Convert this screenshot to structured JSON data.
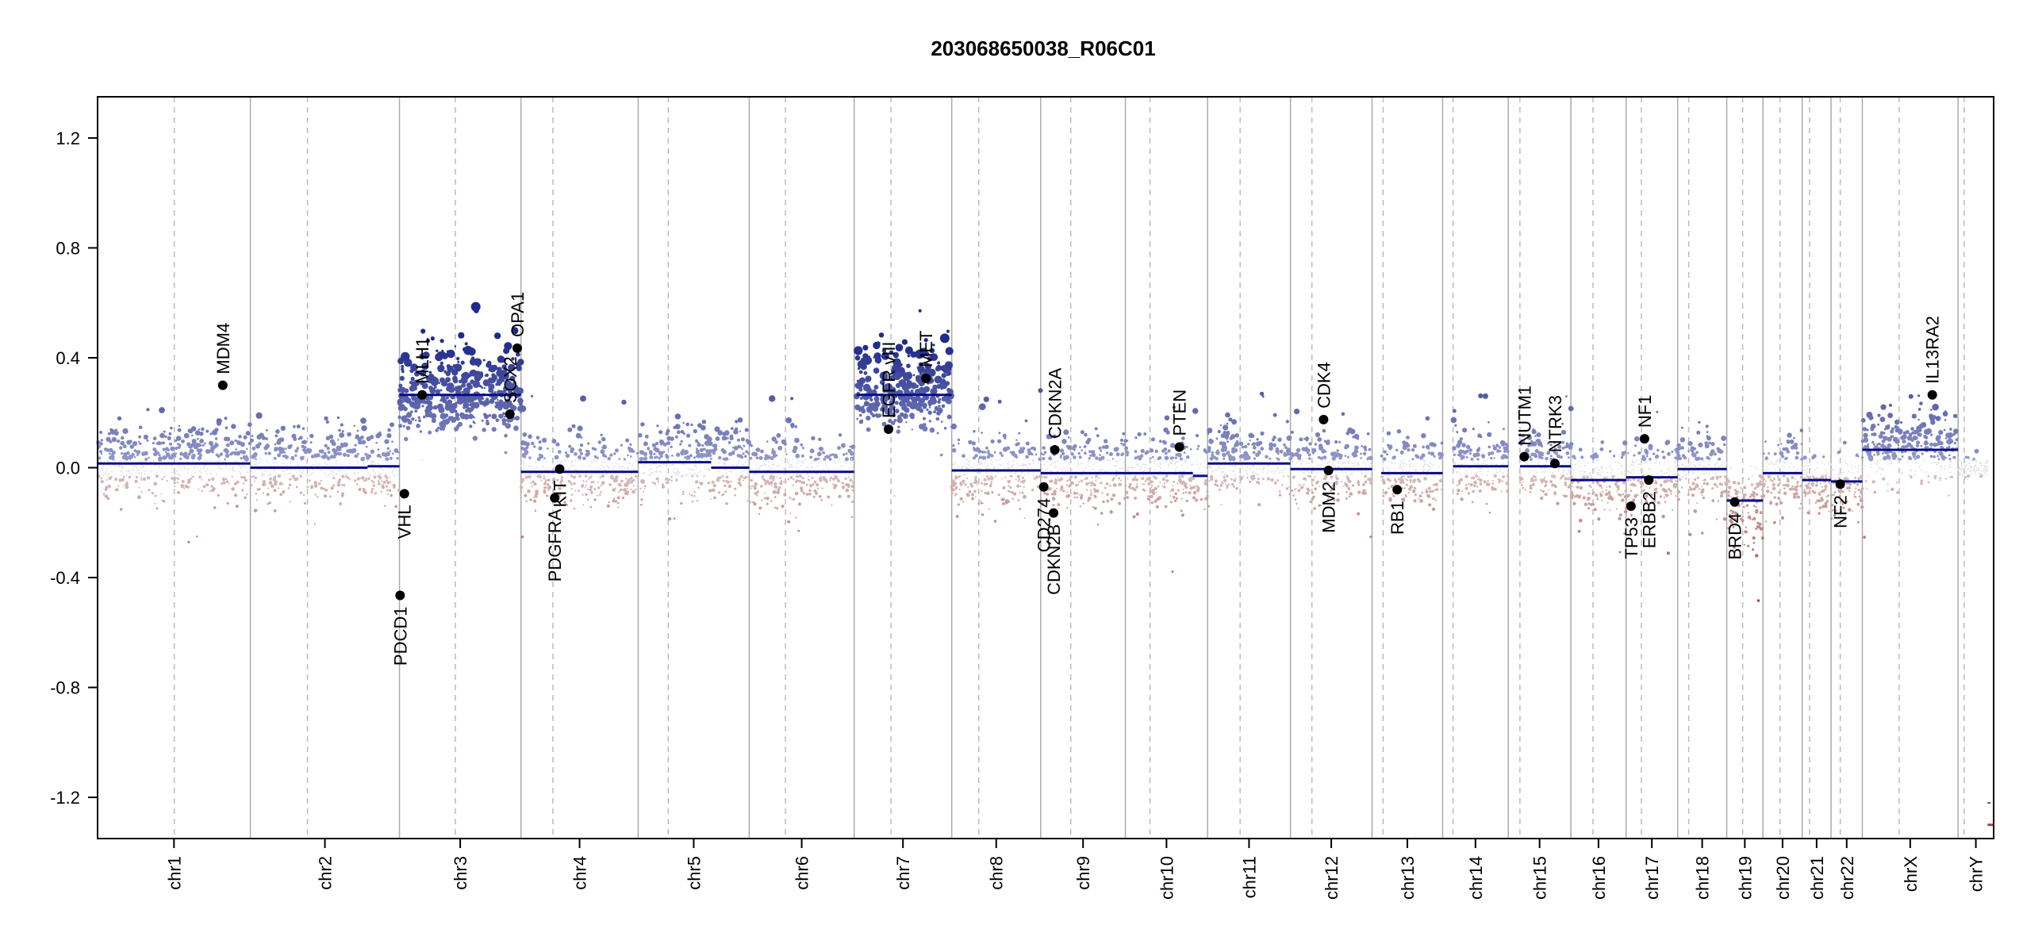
{
  "chart_data": {
    "type": "scatter",
    "title": "203068650038_R06C01",
    "xlabel": "",
    "ylabel": "",
    "ylim": [
      -1.35,
      1.35
    ],
    "yticks": [
      -1.2,
      -0.8,
      -0.4,
      0.0,
      0.4,
      0.8,
      1.2
    ],
    "ytick_labels": [
      "-1.2",
      "-0.8",
      "-0.4",
      "0.0",
      "0.4",
      "0.8",
      "1.2"
    ],
    "grid": false,
    "colors": {
      "gain_dark": "#1f2a8c",
      "gain_light": "#9aa0cc",
      "loss_dark": "#a8453b",
      "loss_light": "#d8c4c2",
      "segment": "#0a0a85",
      "chr_boundary": "#aaaaaa",
      "centromere": "#bbbbbb"
    },
    "chromosomes": [
      {
        "name": "chr1",
        "start": 0,
        "end": 249,
        "centromere": 125
      },
      {
        "name": "chr2",
        "start": 249,
        "end": 492,
        "centromere": 342
      },
      {
        "name": "chr3",
        "start": 492,
        "end": 690,
        "centromere": 583
      },
      {
        "name": "chr4",
        "start": 690,
        "end": 881,
        "centromere": 742
      },
      {
        "name": "chr5",
        "start": 881,
        "end": 1062,
        "centromere": 930
      },
      {
        "name": "chr6",
        "start": 1062,
        "end": 1233,
        "centromere": 1121
      },
      {
        "name": "chr7",
        "start": 1233,
        "end": 1392,
        "centromere": 1293
      },
      {
        "name": "chr8",
        "start": 1392,
        "end": 1537,
        "centromere": 1436
      },
      {
        "name": "chr9",
        "start": 1537,
        "end": 1675,
        "centromere": 1586
      },
      {
        "name": "chr10",
        "start": 1675,
        "end": 1809,
        "centromere": 1715
      },
      {
        "name": "chr11",
        "start": 1809,
        "end": 1944,
        "centromere": 1862
      },
      {
        "name": "chr12",
        "start": 1944,
        "end": 2077,
        "centromere": 1979
      },
      {
        "name": "chr13",
        "start": 2077,
        "end": 2192,
        "centromere": 2095
      },
      {
        "name": "chr14",
        "start": 2192,
        "end": 2299,
        "centromere": 2209
      },
      {
        "name": "chr15",
        "start": 2299,
        "end": 2401,
        "centromere": 2318
      },
      {
        "name": "chr16",
        "start": 2401,
        "end": 2491,
        "centromere": 2437
      },
      {
        "name": "chr17",
        "start": 2491,
        "end": 2575,
        "centromere": 2516
      },
      {
        "name": "chr18",
        "start": 2575,
        "end": 2655,
        "centromere": 2593
      },
      {
        "name": "chr19",
        "start": 2655,
        "end": 2714,
        "centromere": 2681
      },
      {
        "name": "chr20",
        "start": 2714,
        "end": 2778,
        "centromere": 2742
      },
      {
        "name": "chr21",
        "start": 2778,
        "end": 2825,
        "centromere": 2790
      },
      {
        "name": "chr22",
        "start": 2825,
        "end": 2876,
        "centromere": 2840
      },
      {
        "name": "chrX",
        "start": 2876,
        "end": 3032,
        "centromere": 2936
      },
      {
        "name": "chrY",
        "start": 3032,
        "end": 3090,
        "centromere": 3042
      }
    ],
    "segments": [
      {
        "x0": 0,
        "x1": 249,
        "y": 0.015
      },
      {
        "x0": 249,
        "x1": 440,
        "y": 0.0
      },
      {
        "x0": 440,
        "x1": 492,
        "y": 0.005
      },
      {
        "x0": 492,
        "x1": 690,
        "y": 0.265
      },
      {
        "x0": 690,
        "x1": 881,
        "y": -0.015
      },
      {
        "x0": 881,
        "x1": 1000,
        "y": 0.02
      },
      {
        "x0": 1000,
        "x1": 1062,
        "y": 0.0
      },
      {
        "x0": 1062,
        "x1": 1233,
        "y": -0.015
      },
      {
        "x0": 1237,
        "x1": 1392,
        "y": 0.265
      },
      {
        "x0": 1392,
        "x1": 1537,
        "y": -0.01
      },
      {
        "x0": 1537,
        "x1": 1675,
        "y": -0.02
      },
      {
        "x0": 1675,
        "x1": 1785,
        "y": -0.02
      },
      {
        "x0": 1785,
        "x1": 1809,
        "y": -0.03
      },
      {
        "x0": 1809,
        "x1": 1944,
        "y": 0.015
      },
      {
        "x0": 1944,
        "x1": 2077,
        "y": -0.005
      },
      {
        "x0": 2092,
        "x1": 2192,
        "y": -0.02
      },
      {
        "x0": 2209,
        "x1": 2299,
        "y": 0.005
      },
      {
        "x0": 2318,
        "x1": 2401,
        "y": 0.005
      },
      {
        "x0": 2401,
        "x1": 2491,
        "y": -0.045
      },
      {
        "x0": 2491,
        "x1": 2575,
        "y": -0.035
      },
      {
        "x0": 2575,
        "x1": 2655,
        "y": -0.005
      },
      {
        "x0": 2655,
        "x1": 2714,
        "y": -0.12
      },
      {
        "x0": 2714,
        "x1": 2778,
        "y": -0.02
      },
      {
        "x0": 2778,
        "x1": 2825,
        "y": -0.045
      },
      {
        "x0": 2825,
        "x1": 2876,
        "y": -0.05
      },
      {
        "x0": 2876,
        "x1": 3032,
        "y": 0.065
      },
      {
        "x0": 3080,
        "x1": 3090,
        "y": -1.3
      }
    ],
    "regions": [
      {
        "x0": 0,
        "x1": 249,
        "base": 0.015,
        "gain": 0.12,
        "loss": 0.1
      },
      {
        "x0": 249,
        "x1": 492,
        "base": 0.0,
        "gain": 0.12,
        "loss": 0.1
      },
      {
        "x0": 492,
        "x1": 690,
        "base": 0.265,
        "gain": 0.16,
        "loss": 0.12
      },
      {
        "x0": 690,
        "x1": 881,
        "base": -0.015,
        "gain": 0.11,
        "loss": 0.11
      },
      {
        "x0": 881,
        "x1": 1062,
        "base": 0.01,
        "gain": 0.13,
        "loss": 0.11
      },
      {
        "x0": 1062,
        "x1": 1233,
        "base": -0.015,
        "gain": 0.11,
        "loss": 0.11
      },
      {
        "x0": 1237,
        "x1": 1392,
        "base": 0.265,
        "gain": 0.16,
        "loss": 0.12
      },
      {
        "x0": 1392,
        "x1": 1537,
        "base": -0.01,
        "gain": 0.11,
        "loss": 0.11
      },
      {
        "x0": 1537,
        "x1": 1675,
        "base": -0.02,
        "gain": 0.11,
        "loss": 0.11
      },
      {
        "x0": 1675,
        "x1": 1809,
        "base": -0.02,
        "gain": 0.11,
        "loss": 0.11
      },
      {
        "x0": 1809,
        "x1": 1944,
        "base": 0.015,
        "gain": 0.12,
        "loss": 0.1
      },
      {
        "x0": 1944,
        "x1": 2077,
        "base": -0.005,
        "gain": 0.11,
        "loss": 0.11
      },
      {
        "x0": 2092,
        "x1": 2192,
        "base": -0.02,
        "gain": 0.11,
        "loss": 0.11
      },
      {
        "x0": 2209,
        "x1": 2299,
        "base": 0.005,
        "gain": 0.12,
        "loss": 0.1
      },
      {
        "x0": 2318,
        "x1": 2401,
        "base": 0.005,
        "gain": 0.12,
        "loss": 0.1
      },
      {
        "x0": 2401,
        "x1": 2491,
        "base": -0.045,
        "gain": 0.1,
        "loss": 0.12
      },
      {
        "x0": 2491,
        "x1": 2575,
        "base": -0.035,
        "gain": 0.11,
        "loss": 0.12
      },
      {
        "x0": 2575,
        "x1": 2655,
        "base": -0.005,
        "gain": 0.11,
        "loss": 0.11
      },
      {
        "x0": 2655,
        "x1": 2714,
        "base": -0.12,
        "gain": 0.1,
        "loss": 0.14
      },
      {
        "x0": 2714,
        "x1": 2778,
        "base": -0.02,
        "gain": 0.11,
        "loss": 0.11
      },
      {
        "x0": 2778,
        "x1": 2825,
        "base": -0.045,
        "gain": 0.1,
        "loss": 0.12
      },
      {
        "x0": 2825,
        "x1": 2876,
        "base": -0.05,
        "gain": 0.1,
        "loss": 0.12
      },
      {
        "x0": 2876,
        "x1": 3032,
        "base": 0.065,
        "gain": 0.13,
        "loss": 0.12
      },
      {
        "x0": 3032,
        "x1": 3080,
        "base": 0.0,
        "gain": 0.03,
        "loss": 0.03
      }
    ],
    "genes": [
      {
        "name": "MDM4",
        "x": 204,
        "y": 0.3,
        "label_side": "above"
      },
      {
        "name": "PDCD1",
        "x": 493,
        "y": -0.465,
        "label_side": "below"
      },
      {
        "name": "VHL",
        "x": 500,
        "y": -0.095,
        "label_side": "below"
      },
      {
        "name": "MLH1",
        "x": 529,
        "y": 0.265,
        "label_side": "above"
      },
      {
        "name": "SOX2",
        "x": 672,
        "y": 0.195,
        "label_side": "above"
      },
      {
        "name": "OPA1",
        "x": 684,
        "y": 0.435,
        "label_side": "above"
      },
      {
        "name": "PDGFRA",
        "x": 745,
        "y": -0.11,
        "label_side": "below"
      },
      {
        "name": "KIT",
        "x": 753,
        "y": -0.005,
        "label_side": "below"
      },
      {
        "name": "EGFR_vIII",
        "x": 1289,
        "y": 0.14,
        "label_side": "above"
      },
      {
        "name": "MET",
        "x": 1350,
        "y": 0.325,
        "label_side": "above"
      },
      {
        "name": "CD274",
        "x": 1542,
        "y": -0.07,
        "label_side": "below"
      },
      {
        "name": "CDKN2B",
        "x": 1558,
        "y": -0.165,
        "label_side": "below"
      },
      {
        "name": "CDKN2A",
        "x": 1560,
        "y": 0.065,
        "label_side": "above"
      },
      {
        "name": "PTEN",
        "x": 1763,
        "y": 0.075,
        "label_side": "above"
      },
      {
        "name": "CDK4",
        "x": 1998,
        "y": 0.175,
        "label_side": "above"
      },
      {
        "name": "MDM2",
        "x": 2006,
        "y": -0.01,
        "label_side": "below"
      },
      {
        "name": "RB1",
        "x": 2118,
        "y": -0.08,
        "label_side": "below"
      },
      {
        "name": "NUTM1",
        "x": 2325,
        "y": 0.04,
        "label_side": "above"
      },
      {
        "name": "NTRK3",
        "x": 2375,
        "y": 0.015,
        "label_side": "above"
      },
      {
        "name": "TP53",
        "x": 2499,
        "y": -0.14,
        "label_side": "below"
      },
      {
        "name": "NF1",
        "x": 2521,
        "y": 0.105,
        "label_side": "above"
      },
      {
        "name": "ERBB2",
        "x": 2528,
        "y": -0.045,
        "label_side": "below"
      },
      {
        "name": "BRD4",
        "x": 2668,
        "y": -0.125,
        "label_side": "below"
      },
      {
        "name": "NF2",
        "x": 2840,
        "y": -0.06,
        "label_side": "below"
      },
      {
        "name": "IL13RA2",
        "x": 2990,
        "y": 0.265,
        "label_side": "above"
      }
    ]
  }
}
